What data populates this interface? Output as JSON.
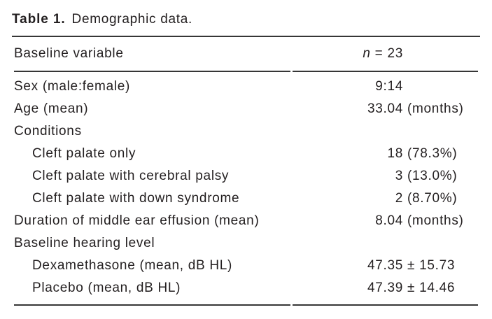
{
  "table": {
    "caption": {
      "label": "Table 1.",
      "title": "Demographic data."
    },
    "header": {
      "variable_col": "Baseline variable",
      "n_symbol": "n",
      "n_value": " = 23"
    },
    "rows": [
      {
        "label": "Sex (male:female)",
        "num": "9:14",
        "rest": ""
      },
      {
        "label": "Age (mean)",
        "num": "33.04",
        "rest": " (months)"
      },
      {
        "label": "Conditions",
        "num": "",
        "rest": ""
      },
      {
        "label": "Cleft palate only",
        "num": "18",
        "rest": " (78.3%)"
      },
      {
        "label": "Cleft palate with cerebral palsy",
        "num": "3",
        "rest": " (13.0%)"
      },
      {
        "label": "Cleft palate with down syndrome",
        "num": "2",
        "rest": " (8.70%)"
      },
      {
        "label": "Duration of middle ear effusion (mean)",
        "num": "8.04",
        "rest": " (months)"
      },
      {
        "label": "Baseline hearing level",
        "num": "",
        "rest": ""
      },
      {
        "label": "Dexamethasone (mean, dB HL)",
        "num": "47.35",
        "rest": " ± 15.73"
      },
      {
        "label": "Placebo (mean, dB HL)",
        "num": "47.39",
        "rest": " ± 14.46"
      }
    ],
    "colors": {
      "text": "#231f20",
      "rule": "#363636",
      "background": "#ffffff"
    }
  }
}
